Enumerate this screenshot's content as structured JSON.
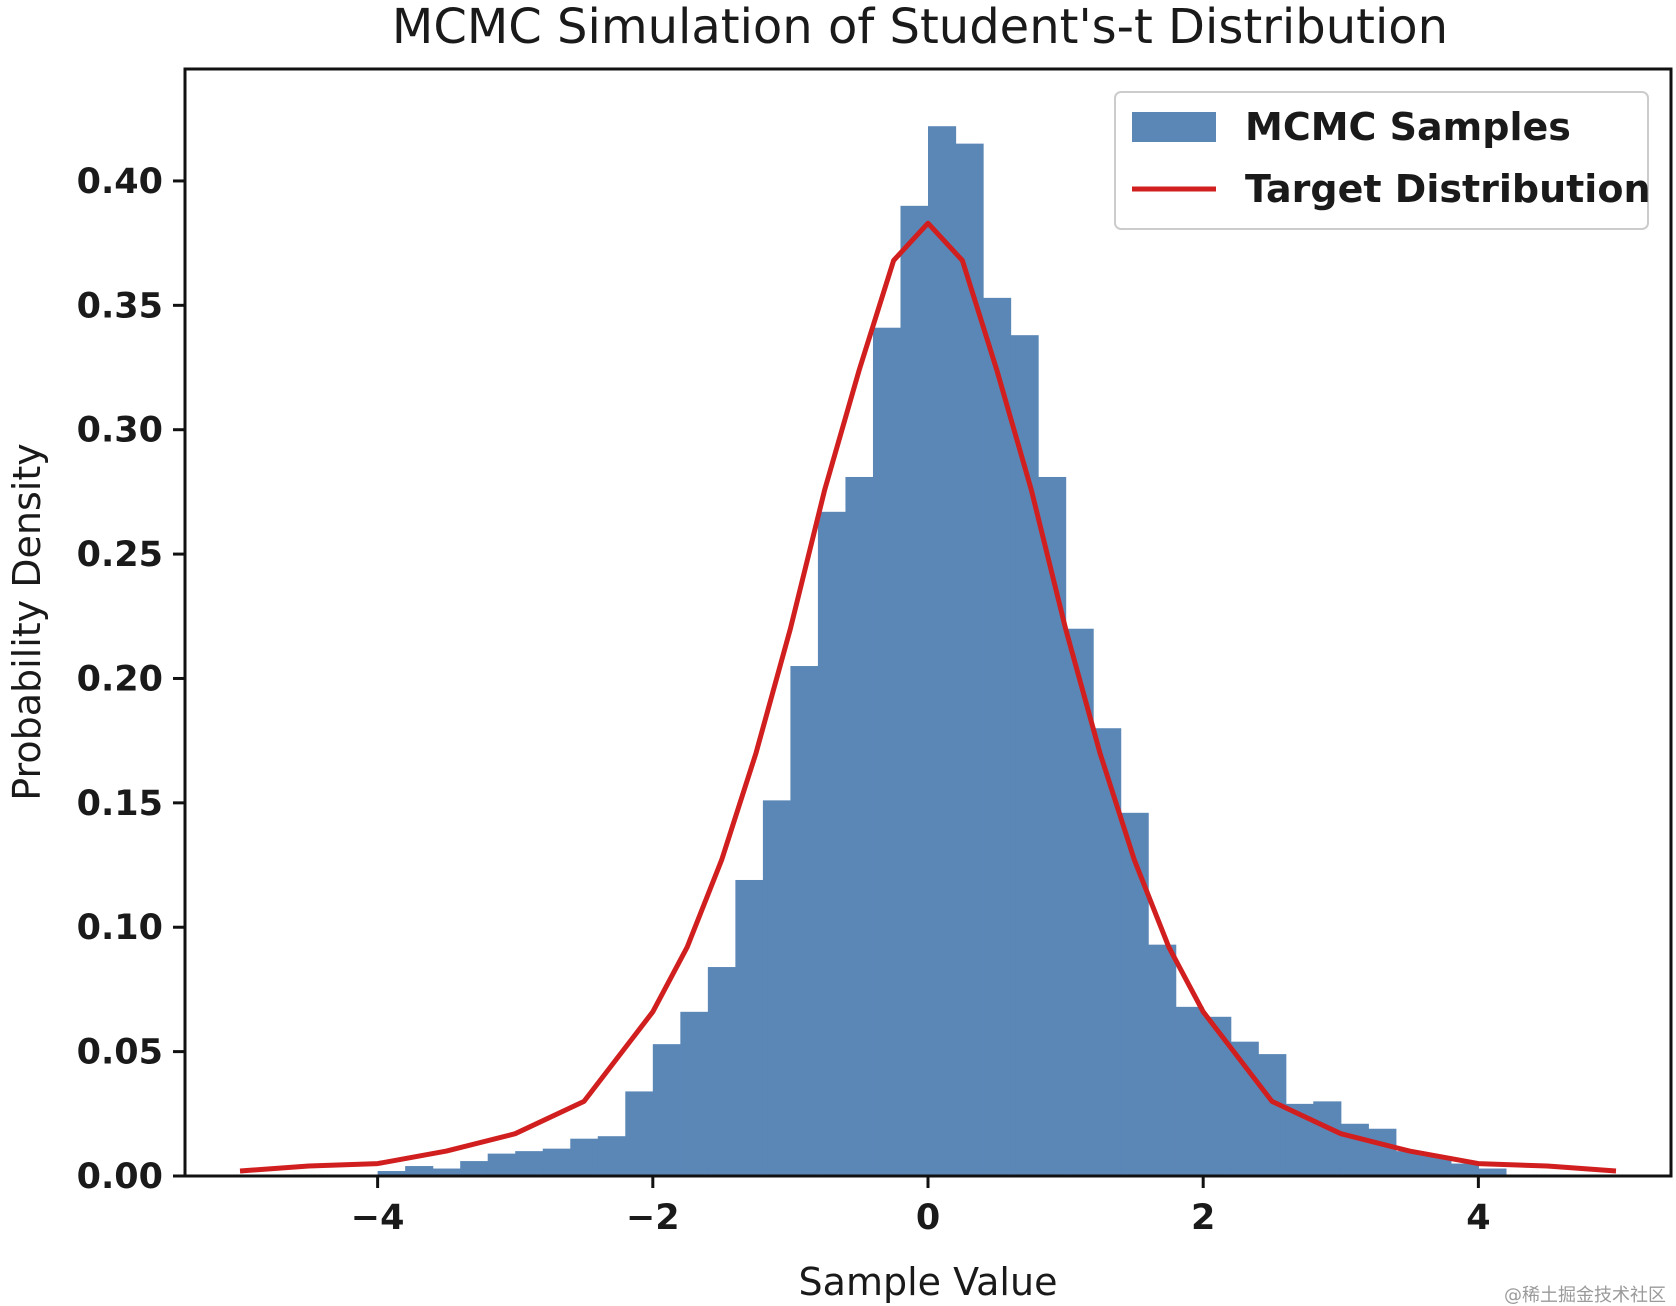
{
  "chart_data": {
    "type": "bar",
    "title": "MCMC Simulation of Student's-t Distribution",
    "xlabel": "Sample Value",
    "ylabel": "Probability Density",
    "xlim": [
      -5.4,
      5.4
    ],
    "ylim": [
      0,
      0.445
    ],
    "xticks": [
      -4,
      -2,
      0,
      2,
      4
    ],
    "xtick_labels": [
      "−4",
      "−2",
      "0",
      "2",
      "4"
    ],
    "yticks": [
      0.0,
      0.05,
      0.1,
      0.15,
      0.2,
      0.25,
      0.3,
      0.35,
      0.4
    ],
    "ytick_labels": [
      "0.00",
      "0.05",
      "0.10",
      "0.15",
      "0.20",
      "0.25",
      "0.30",
      "0.35",
      "0.40"
    ],
    "grid": false,
    "legend_position": "top-right",
    "series": [
      {
        "name": "MCMC Samples",
        "kind": "histogram",
        "color": "#5b87b7",
        "bins": [
          [
            -4.0,
            -3.8,
            0.002
          ],
          [
            -3.8,
            -3.6,
            0.004
          ],
          [
            -3.6,
            -3.4,
            0.003
          ],
          [
            -3.4,
            -3.2,
            0.006
          ],
          [
            -3.2,
            -3.0,
            0.009
          ],
          [
            -3.0,
            -2.8,
            0.01
          ],
          [
            -2.8,
            -2.6,
            0.011
          ],
          [
            -2.6,
            -2.4,
            0.015
          ],
          [
            -2.4,
            -2.2,
            0.016
          ],
          [
            -2.2,
            -2.0,
            0.034
          ],
          [
            -2.0,
            -1.8,
            0.053
          ],
          [
            -1.8,
            -1.6,
            0.066
          ],
          [
            -1.6,
            -1.4,
            0.084
          ],
          [
            -1.4,
            -1.2,
            0.119
          ],
          [
            -1.2,
            -1.0,
            0.151
          ],
          [
            -1.0,
            -0.8,
            0.205
          ],
          [
            -0.8,
            -0.6,
            0.267
          ],
          [
            -0.6,
            -0.4,
            0.281
          ],
          [
            -0.4,
            -0.2,
            0.341
          ],
          [
            -0.2,
            0.0,
            0.39
          ],
          [
            0.0,
            0.2,
            0.422
          ],
          [
            0.2,
            0.4,
            0.415
          ],
          [
            0.4,
            0.6,
            0.353
          ],
          [
            0.6,
            0.8,
            0.338
          ],
          [
            0.8,
            1.0,
            0.281
          ],
          [
            1.0,
            1.2,
            0.22
          ],
          [
            1.2,
            1.4,
            0.18
          ],
          [
            1.4,
            1.6,
            0.146
          ],
          [
            1.6,
            1.8,
            0.093
          ],
          [
            1.8,
            2.0,
            0.068
          ],
          [
            2.0,
            2.2,
            0.064
          ],
          [
            2.2,
            2.4,
            0.054
          ],
          [
            2.4,
            2.6,
            0.049
          ],
          [
            2.6,
            2.8,
            0.029
          ],
          [
            2.8,
            3.0,
            0.03
          ],
          [
            3.0,
            3.2,
            0.021
          ],
          [
            3.2,
            3.4,
            0.019
          ],
          [
            3.4,
            3.6,
            0.01
          ],
          [
            3.6,
            3.8,
            0.008
          ],
          [
            3.8,
            4.0,
            0.005
          ],
          [
            4.0,
            4.2,
            0.003
          ]
        ]
      },
      {
        "name": "Target Distribution",
        "kind": "line",
        "color": "#d11f1f",
        "x": [
          -5.0,
          -4.5,
          -4.0,
          -3.5,
          -3.0,
          -2.5,
          -2.0,
          -1.75,
          -1.5,
          -1.25,
          -1.0,
          -0.75,
          -0.5,
          -0.25,
          0.0,
          0.25,
          0.5,
          0.75,
          1.0,
          1.25,
          1.5,
          1.75,
          2.0,
          2.5,
          3.0,
          3.5,
          4.0,
          4.5,
          5.0
        ],
        "y": [
          0.002,
          0.004,
          0.005,
          0.01,
          0.017,
          0.03,
          0.066,
          0.092,
          0.127,
          0.17,
          0.22,
          0.276,
          0.324,
          0.368,
          0.383,
          0.368,
          0.324,
          0.276,
          0.22,
          0.17,
          0.127,
          0.092,
          0.066,
          0.03,
          0.017,
          0.01,
          0.005,
          0.004,
          0.002
        ]
      }
    ]
  },
  "watermark": "@稀土掘金技术社区"
}
